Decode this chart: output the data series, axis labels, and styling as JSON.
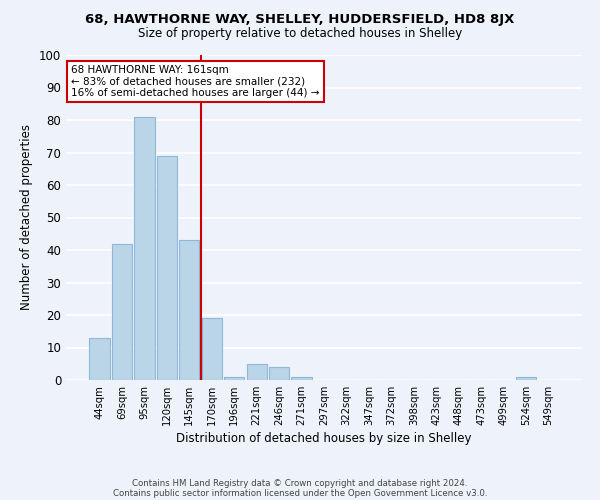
{
  "title1": "68, HAWTHORNE WAY, SHELLEY, HUDDERSFIELD, HD8 8JX",
  "title2": "Size of property relative to detached houses in Shelley",
  "xlabel": "Distribution of detached houses by size in Shelley",
  "ylabel": "Number of detached properties",
  "bar_labels": [
    "44sqm",
    "69sqm",
    "95sqm",
    "120sqm",
    "145sqm",
    "170sqm",
    "196sqm",
    "221sqm",
    "246sqm",
    "271sqm",
    "297sqm",
    "322sqm",
    "347sqm",
    "372sqm",
    "398sqm",
    "423sqm",
    "448sqm",
    "473sqm",
    "499sqm",
    "524sqm",
    "549sqm"
  ],
  "bar_heights": [
    13,
    42,
    81,
    69,
    43,
    19,
    1,
    5,
    4,
    1,
    0,
    0,
    0,
    0,
    0,
    0,
    0,
    0,
    0,
    1,
    0
  ],
  "bar_color": "#bad4e8",
  "bar_edge_color": "#90b8d8",
  "vline_color": "#cc0000",
  "ylim": [
    0,
    100
  ],
  "yticks": [
    0,
    10,
    20,
    30,
    40,
    50,
    60,
    70,
    80,
    90,
    100
  ],
  "annotation_line1": "68 HAWTHORNE WAY: 161sqm",
  "annotation_line2": "← 83% of detached houses are smaller (232)",
  "annotation_line3": "16% of semi-detached houses are larger (44) →",
  "annotation_box_color": "#ffffff",
  "annotation_box_edge": "#cc0000",
  "footer1": "Contains HM Land Registry data © Crown copyright and database right 2024.",
  "footer2": "Contains public sector information licensed under the Open Government Licence v3.0.",
  "background_color": "#eef2fa",
  "grid_color": "#ffffff"
}
